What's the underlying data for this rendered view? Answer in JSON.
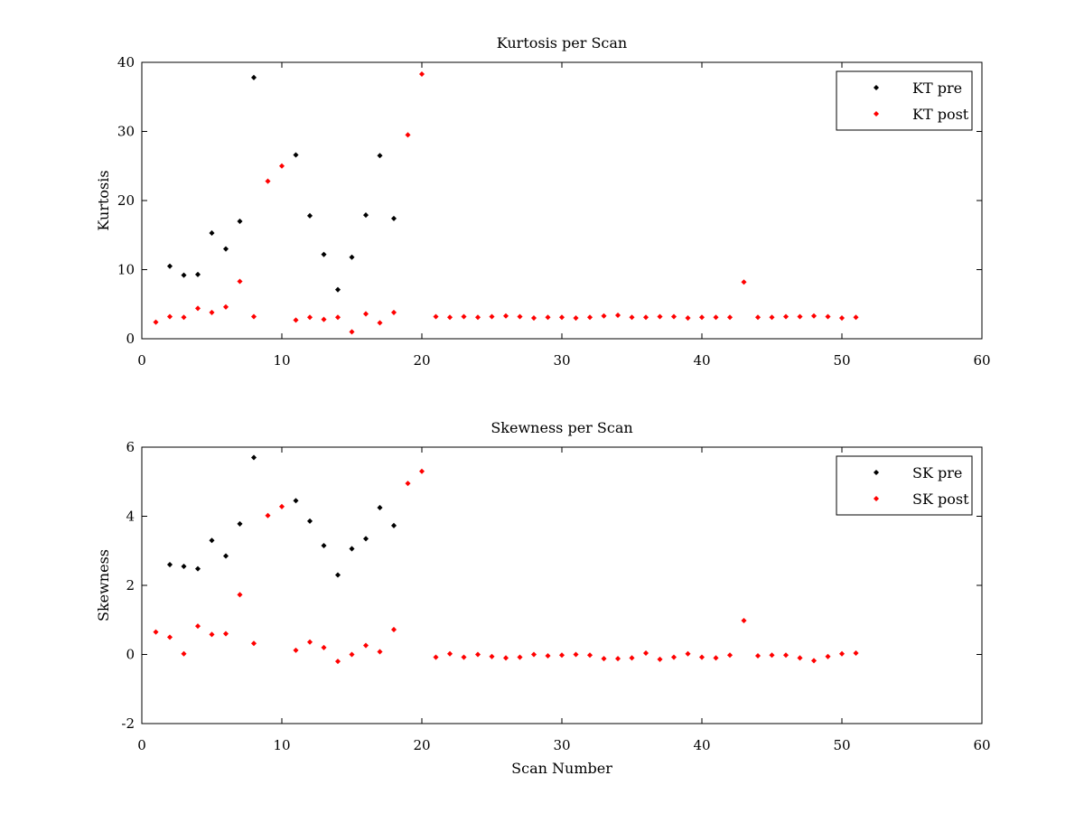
{
  "chart_data": [
    {
      "type": "scatter",
      "title": "Kurtosis per Scan",
      "xlabel": "",
      "ylabel": "Kurtosis",
      "xlim": [
        0,
        60
      ],
      "ylim": [
        0,
        40
      ],
      "xticks": [
        "0",
        "10",
        "20",
        "30",
        "40",
        "50",
        "60"
      ],
      "yticks": [
        "0",
        "10",
        "20",
        "30",
        "40"
      ],
      "legend_position": "top-right",
      "series": [
        {
          "name": "KT pre",
          "color": "#000000",
          "x": [
            2,
            3,
            4,
            5,
            6,
            7,
            8,
            11,
            12,
            13,
            14,
            15,
            16,
            17,
            18
          ],
          "y": [
            10.5,
            9.2,
            9.3,
            15.3,
            13.0,
            17.0,
            37.8,
            26.6,
            17.8,
            12.2,
            7.1,
            11.8,
            17.9,
            26.5,
            17.4
          ]
        },
        {
          "name": "KT post",
          "color": "#ff0000",
          "x": [
            1,
            2,
            3,
            4,
            5,
            6,
            7,
            8,
            9,
            10,
            11,
            12,
            13,
            14,
            15,
            16,
            17,
            18,
            19,
            20,
            21,
            22,
            23,
            24,
            25,
            26,
            27,
            28,
            29,
            30,
            31,
            32,
            33,
            34,
            35,
            36,
            37,
            38,
            39,
            40,
            41,
            42,
            43,
            44,
            45,
            46,
            47,
            48,
            49,
            50,
            51
          ],
          "y": [
            2.4,
            3.2,
            3.1,
            4.4,
            3.8,
            4.6,
            8.3,
            3.2,
            22.8,
            25.0,
            2.7,
            3.1,
            2.8,
            3.1,
            1.0,
            3.6,
            2.3,
            3.8,
            29.5,
            38.3,
            3.2,
            3.1,
            3.2,
            3.1,
            3.2,
            3.3,
            3.2,
            3.0,
            3.1,
            3.1,
            3.0,
            3.1,
            3.3,
            3.4,
            3.1,
            3.1,
            3.2,
            3.2,
            3.0,
            3.1,
            3.1,
            3.1,
            8.2,
            3.1,
            3.1,
            3.2,
            3.2,
            3.3,
            3.2,
            3.0,
            3.1
          ]
        }
      ]
    },
    {
      "type": "scatter",
      "title": "Skewness per Scan",
      "xlabel": "Scan Number",
      "ylabel": "Skewness",
      "xlim": [
        0,
        60
      ],
      "ylim": [
        -2,
        6
      ],
      "xticks": [
        "0",
        "10",
        "20",
        "30",
        "40",
        "50",
        "60"
      ],
      "yticks": [
        "-2",
        "0",
        "2",
        "4",
        "6"
      ],
      "legend_position": "top-right",
      "series": [
        {
          "name": "SK pre",
          "color": "#000000",
          "x": [
            2,
            3,
            4,
            5,
            6,
            7,
            8,
            11,
            12,
            13,
            14,
            15,
            16,
            17,
            18
          ],
          "y": [
            2.6,
            2.55,
            2.48,
            3.3,
            2.85,
            3.78,
            5.7,
            4.45,
            3.86,
            3.15,
            2.3,
            3.06,
            3.35,
            4.25,
            3.73
          ]
        },
        {
          "name": "SK post",
          "color": "#ff0000",
          "x": [
            1,
            2,
            3,
            4,
            5,
            6,
            7,
            8,
            9,
            10,
            11,
            12,
            13,
            14,
            15,
            16,
            17,
            18,
            19,
            20,
            21,
            22,
            23,
            24,
            25,
            26,
            27,
            28,
            29,
            30,
            31,
            32,
            33,
            34,
            35,
            36,
            37,
            38,
            39,
            40,
            41,
            42,
            43,
            44,
            45,
            46,
            47,
            48,
            49,
            50,
            51
          ],
          "y": [
            0.65,
            0.5,
            0.02,
            0.82,
            0.58,
            0.6,
            1.73,
            0.32,
            4.02,
            4.28,
            0.12,
            0.36,
            0.2,
            -0.2,
            0.0,
            0.26,
            0.08,
            0.72,
            4.95,
            5.3,
            -0.08,
            0.02,
            -0.08,
            0.0,
            -0.06,
            -0.1,
            -0.08,
            0.0,
            -0.04,
            -0.02,
            0.0,
            -0.02,
            -0.12,
            -0.12,
            -0.1,
            0.04,
            -0.14,
            -0.08,
            0.02,
            -0.08,
            -0.1,
            -0.02,
            0.98,
            -0.04,
            -0.02,
            -0.02,
            -0.1,
            -0.18,
            -0.06,
            0.02,
            0.04
          ]
        }
      ]
    }
  ]
}
